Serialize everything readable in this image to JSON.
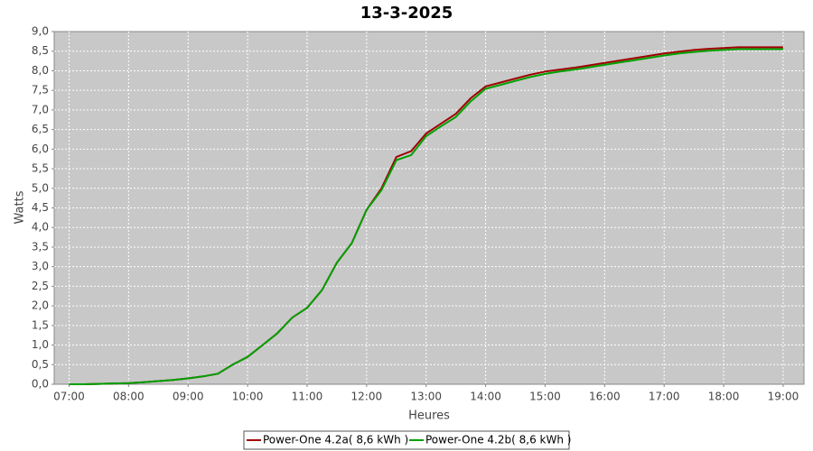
{
  "chart_data": {
    "type": "line",
    "title": "13-3-2025",
    "x_label": "Heures",
    "y_label": "Watts",
    "x": [
      "07:00",
      "07:15",
      "07:30",
      "07:45",
      "08:00",
      "08:15",
      "08:30",
      "08:45",
      "09:00",
      "09:15",
      "09:30",
      "09:45",
      "10:00",
      "10:15",
      "10:30",
      "10:45",
      "11:00",
      "11:15",
      "11:30",
      "11:45",
      "12:00",
      "12:15",
      "12:30",
      "12:45",
      "13:00",
      "13:15",
      "13:30",
      "13:45",
      "14:00",
      "14:15",
      "14:30",
      "14:45",
      "15:00",
      "15:15",
      "15:30",
      "15:45",
      "16:00",
      "16:15",
      "16:30",
      "16:45",
      "17:00",
      "17:15",
      "17:30",
      "17:45",
      "18:00",
      "18:15",
      "18:30",
      "18:45",
      "19:00"
    ],
    "series": [
      {
        "name": "Power-One 4.2a( 8,6 kWh )",
        "color": "#a00000",
        "values": [
          0.0,
          0.0,
          0.01,
          0.02,
          0.03,
          0.05,
          0.08,
          0.11,
          0.15,
          0.2,
          0.27,
          0.5,
          0.7,
          1.0,
          1.3,
          1.7,
          1.95,
          2.4,
          3.1,
          3.6,
          4.45,
          5.0,
          5.8,
          5.95,
          6.4,
          6.65,
          6.9,
          7.3,
          7.6,
          7.7,
          7.8,
          7.9,
          7.98,
          8.03,
          8.08,
          8.14,
          8.2,
          8.26,
          8.32,
          8.38,
          8.44,
          8.49,
          8.53,
          8.56,
          8.58,
          8.6,
          8.6,
          8.6,
          8.6
        ]
      },
      {
        "name": "Power-One 4.2b( 8,6 kWh )",
        "color": "#00a000",
        "values": [
          0.0,
          0.0,
          0.01,
          0.02,
          0.03,
          0.05,
          0.08,
          0.11,
          0.15,
          0.2,
          0.27,
          0.5,
          0.7,
          1.0,
          1.3,
          1.7,
          1.95,
          2.4,
          3.1,
          3.6,
          4.45,
          4.95,
          5.72,
          5.85,
          6.33,
          6.58,
          6.82,
          7.22,
          7.54,
          7.64,
          7.74,
          7.84,
          7.92,
          7.98,
          8.03,
          8.09,
          8.15,
          8.21,
          8.27,
          8.33,
          8.39,
          8.44,
          8.48,
          8.51,
          8.53,
          8.55,
          8.55,
          8.55,
          8.55
        ]
      }
    ],
    "xlim": [
      "06:45",
      "19:21"
    ],
    "xticks": [
      "07:00",
      "08:00",
      "09:00",
      "10:00",
      "11:00",
      "12:00",
      "13:00",
      "14:00",
      "15:00",
      "16:00",
      "17:00",
      "18:00",
      "19:00"
    ],
    "ylim": [
      0,
      9
    ],
    "yticks": [
      {
        "value": 0,
        "label": "0,0"
      },
      {
        "value": 0.5,
        "label": "0,5"
      },
      {
        "value": 1,
        "label": "1,0"
      },
      {
        "value": 1.5,
        "label": "1,5"
      },
      {
        "value": 2,
        "label": "2,0"
      },
      {
        "value": 2.5,
        "label": "2,5"
      },
      {
        "value": 3,
        "label": "3,0"
      },
      {
        "value": 3.5,
        "label": "3,5"
      },
      {
        "value": 4,
        "label": "4,0"
      },
      {
        "value": 4.5,
        "label": "4,5"
      },
      {
        "value": 5,
        "label": "5,0"
      },
      {
        "value": 5.5,
        "label": "5,5"
      },
      {
        "value": 6,
        "label": "6,0"
      },
      {
        "value": 6.5,
        "label": "6,5"
      },
      {
        "value": 7,
        "label": "7,0"
      },
      {
        "value": 7.5,
        "label": "7,5"
      },
      {
        "value": 8,
        "label": "8,0"
      },
      {
        "value": 8.5,
        "label": "8,5"
      },
      {
        "value": 9,
        "label": "9,0"
      }
    ],
    "grid": true
  }
}
